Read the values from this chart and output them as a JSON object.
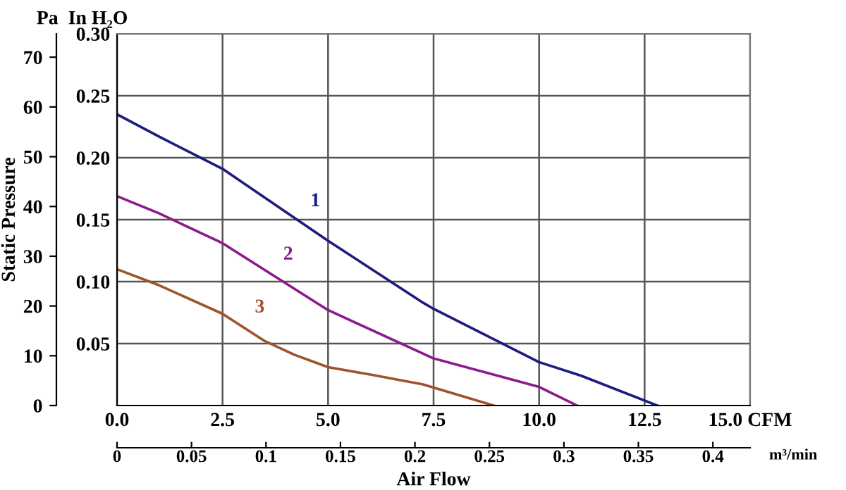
{
  "chart_data": {
    "type": "line",
    "xlabel": "Air Flow",
    "ylabel": "Static Pressure",
    "x2label": "m³/min",
    "annotations": [
      "Pa",
      "In H₂O"
    ],
    "xlim": [
      0,
      15
    ],
    "xticks": [
      {
        "value": 0,
        "label": "0.0"
      },
      {
        "value": 2.5,
        "label": "2.5"
      },
      {
        "value": 5,
        "label": "5.0"
      },
      {
        "value": 7.5,
        "label": "7.5"
      },
      {
        "value": 10,
        "label": "10.0"
      },
      {
        "value": 12.5,
        "label": "12.5"
      },
      {
        "value": 15,
        "label": "15.0 CFM"
      }
    ],
    "ylim": [
      0,
      74.7
    ],
    "yticks": [
      0,
      10,
      20,
      30,
      40,
      50,
      60,
      70
    ],
    "y2lim": [
      0,
      0.3
    ],
    "y2ticks": [
      {
        "value": 0.05,
        "label": "0.05"
      },
      {
        "value": 0.1,
        "label": "0.10"
      },
      {
        "value": 0.15,
        "label": "0.15"
      },
      {
        "value": 0.2,
        "label": "0.20"
      },
      {
        "value": 0.25,
        "label": "0.25"
      },
      {
        "value": 0.3,
        "label": "0.30"
      }
    ],
    "x2lim": [
      0,
      0.425
    ],
    "x2ticks": [
      0,
      0.05,
      0.1,
      0.15,
      0.2,
      0.25,
      0.3,
      0.35,
      0.4
    ],
    "grid": true,
    "legend": false,
    "marker": "none",
    "line_style": "solid",
    "series": [
      {
        "name": "1",
        "axis": "y2",
        "color": "#1c1c80",
        "x": [
          0,
          1,
          2.5,
          5,
          7.25,
          7.5,
          10,
          11,
          12.8
        ],
        "values": [
          0.235,
          0.217,
          0.191,
          0.133,
          0.083,
          0.078,
          0.035,
          0.024,
          0
        ]
      },
      {
        "name": "2",
        "axis": "y2",
        "color": "#8b1a8b",
        "x": [
          0,
          1,
          2.5,
          5,
          7.5,
          10,
          10.9
        ],
        "values": [
          0.169,
          0.155,
          0.131,
          0.077,
          0.038,
          0.015,
          0
        ]
      },
      {
        "name": "3",
        "axis": "y2",
        "color": "#a0522d",
        "x": [
          0,
          1,
          2.5,
          3.5,
          4.2,
          5,
          6,
          7.25,
          8.92
        ],
        "values": [
          0.11,
          0.097,
          0.074,
          0.052,
          0.041,
          0.031,
          0.025,
          0.017,
          0
        ]
      }
    ]
  }
}
